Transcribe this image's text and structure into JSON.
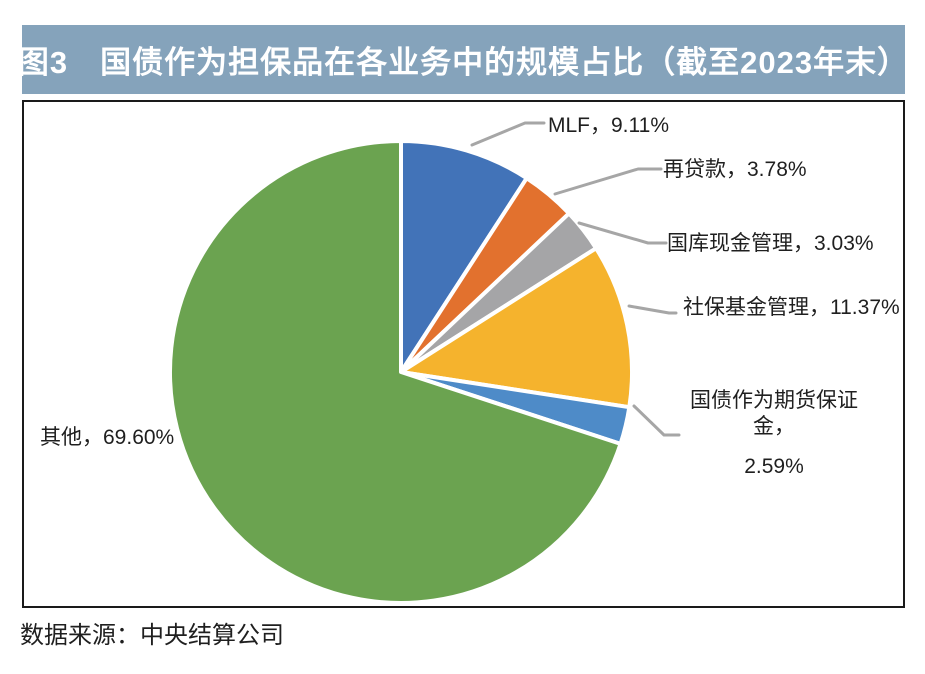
{
  "header": {
    "title": "图3　国债作为担保品在各业务中的规模占比（截至2023年末）",
    "bar_color": "#85A3BB",
    "text_color": "#FFFFFF"
  },
  "chart_data": {
    "type": "pie",
    "title": "国债作为担保品在各业务中的规模占比（截至2023年末）",
    "unit": "%",
    "start_angle_deg": -90,
    "direction": "clockwise",
    "label_separator": "，",
    "leader_line_color": "#A6A6A6",
    "slice_border_color": "#FFFFFF",
    "segments": [
      {
        "label": "MLF",
        "value": 9.11,
        "color": "#4273B8"
      },
      {
        "label": "再贷款",
        "value": 3.78,
        "color": "#E2712E"
      },
      {
        "label": "国库现金管理",
        "value": 3.03,
        "color": "#A5A5A7"
      },
      {
        "label": "社保基金管理",
        "value": 11.37,
        "color": "#F5B32D"
      },
      {
        "label": "国债作为期货保证金",
        "value": 2.59,
        "color": "#4E8BC8"
      },
      {
        "label": "其他",
        "value": 69.6,
        "color": "#6BA350"
      }
    ]
  },
  "footer": {
    "source": "数据来源：中央结算公司"
  }
}
